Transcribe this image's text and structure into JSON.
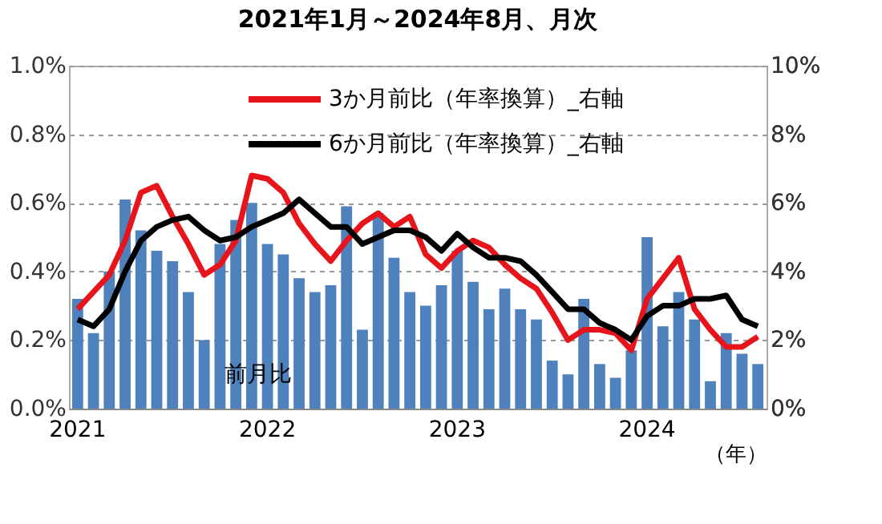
{
  "chart_data": {
    "type": "bar",
    "title": "2021年1月～2024年8月、月次",
    "xlabel": "（年）",
    "categories": [
      "2021",
      null,
      null,
      null,
      null,
      null,
      null,
      null,
      null,
      null,
      null,
      null,
      "2022",
      null,
      null,
      null,
      null,
      null,
      null,
      null,
      null,
      null,
      null,
      null,
      "2023",
      null,
      null,
      null,
      null,
      null,
      null,
      null,
      null,
      null,
      null,
      null,
      "2024",
      null,
      null,
      null,
      null,
      null,
      null,
      null
    ],
    "series": [
      {
        "name": "前月比",
        "color": "#4f81bd",
        "values": [
          0.32,
          0.22,
          0.4,
          0.61,
          0.52,
          0.46,
          0.43,
          0.34,
          0.2,
          0.48,
          0.55,
          0.6,
          0.48,
          0.45,
          0.38,
          0.34,
          0.36,
          0.59,
          0.23,
          0.57,
          0.44,
          0.34,
          0.3,
          0.36,
          0.46,
          0.37,
          0.29,
          0.35,
          0.29,
          0.26,
          0.14,
          0.1,
          0.32,
          0.13,
          0.09,
          0.17,
          0.5,
          0.24,
          0.34,
          0.26,
          0.08,
          0.22,
          0.16,
          0.13
        ]
      },
      {
        "name": "3か月前比（年率換算）_右軸",
        "type": "line",
        "axis": "y2",
        "color": "#e8141b",
        "values": [
          2.9,
          3.4,
          3.9,
          4.9,
          6.3,
          6.5,
          5.6,
          4.8,
          3.9,
          4.2,
          4.9,
          6.8,
          6.7,
          6.3,
          5.4,
          4.8,
          4.3,
          4.9,
          5.4,
          5.7,
          5.3,
          5.6,
          4.5,
          4.1,
          4.6,
          4.9,
          4.7,
          4.2,
          3.8,
          3.5,
          2.8,
          2.0,
          2.3,
          2.3,
          2.2,
          1.7,
          3.2,
          3.8,
          4.4,
          2.9,
          2.3,
          1.8,
          1.8,
          2.1
        ]
      },
      {
        "name": "6か月前比（年率換算）_右軸",
        "type": "line",
        "axis": "y2",
        "color": "#000000",
        "values": [
          2.6,
          2.4,
          2.9,
          4.0,
          4.9,
          5.3,
          5.5,
          5.6,
          5.2,
          4.9,
          5.0,
          5.3,
          5.5,
          5.7,
          6.1,
          5.7,
          5.3,
          5.3,
          4.8,
          5.0,
          5.2,
          5.2,
          5.0,
          4.6,
          5.1,
          4.7,
          4.4,
          4.4,
          4.3,
          3.9,
          3.4,
          2.9,
          2.9,
          2.5,
          2.3,
          2.0,
          2.7,
          3.0,
          3.0,
          3.2,
          3.2,
          3.3,
          2.6,
          2.4
        ]
      }
    ],
    "ylim": [
      0,
      1.0
    ],
    "yticks": [
      {
        "value": 0,
        "label": "0.0%"
      },
      {
        "value": 0.2,
        "label": "0.2%"
      },
      {
        "value": 0.4,
        "label": "0.4%"
      },
      {
        "value": 0.6,
        "label": "0.6%"
      },
      {
        "value": 0.8,
        "label": "0.8%"
      },
      {
        "value": 1.0,
        "label": "1.0%"
      }
    ],
    "y2lim": [
      0,
      10
    ],
    "y2ticks": [
      {
        "value": 0,
        "label": "0%"
      },
      {
        "value": 2,
        "label": "2%"
      },
      {
        "value": 4,
        "label": "4%"
      },
      {
        "value": 6,
        "label": "6%"
      },
      {
        "value": 8,
        "label": "8%"
      },
      {
        "value": 10,
        "label": "10%"
      }
    ],
    "grid": "y",
    "legend": "top right",
    "line_style": "solid",
    "marker": "none"
  }
}
